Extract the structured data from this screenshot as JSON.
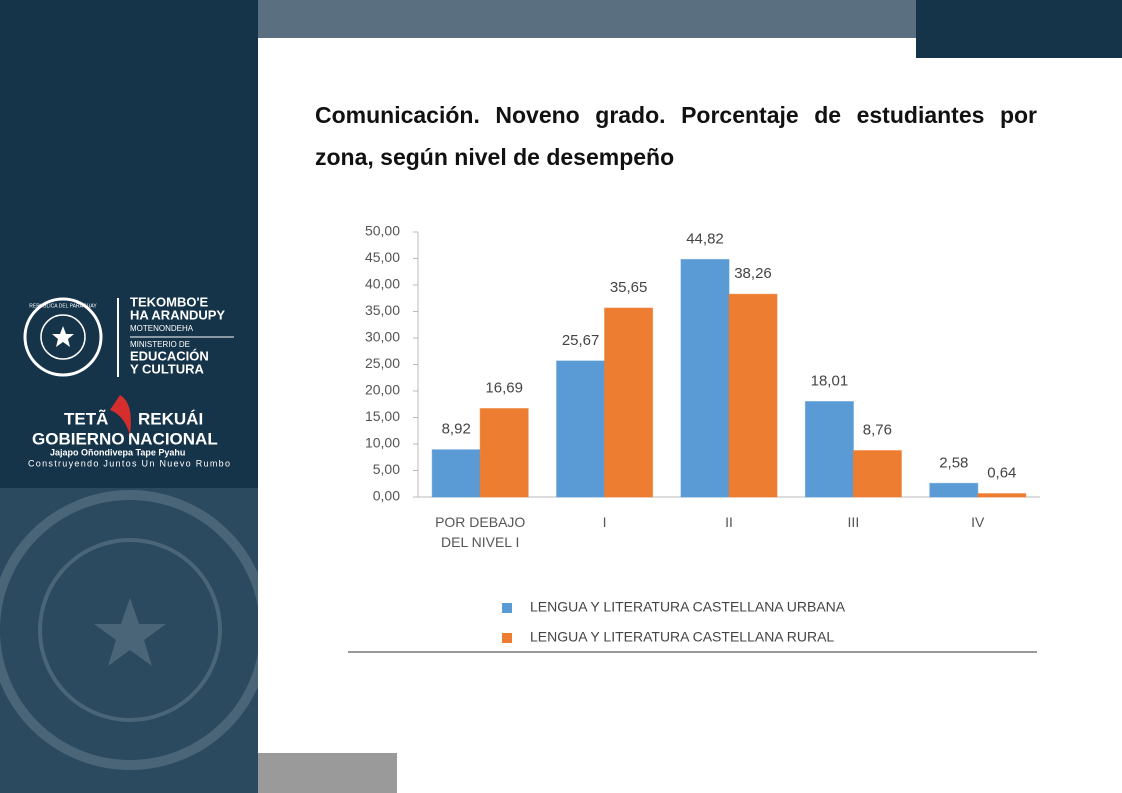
{
  "sidebar": {
    "seal_text": "REPUBLICA DEL PARAGUAY",
    "ministry_1": "TEKOMBO'E",
    "ministry_2": "HA ARANDUPY",
    "ministry_3": "MOTENONDEHA",
    "ministry_4": "MINISTERIO DE",
    "ministry_5": "EDUCACIÓN",
    "ministry_6": "Y CULTURA",
    "gov_1": "TETÃ",
    "gov_2": "REKUÁI",
    "gov_3": "GOBIERNO",
    "gov_4": "NACIONAL",
    "motto_1": "Jajapo Oñondivepa Tape Pyahu",
    "motto_2": "Construyendo Juntos Un Nuevo Rumbo"
  },
  "chart_data": {
    "type": "bar",
    "title": "Comunicación. Noveno grado. Porcentaje de estudiantes por zona,  según nivel de desempeño",
    "categories": [
      "POR DEBAJO DEL NIVEL I",
      "I",
      "II",
      "III",
      "IV"
    ],
    "series": [
      {
        "name": "LENGUA Y LITERATURA CASTELLANA URBANA",
        "color": "#5b9bd5",
        "values": [
          8.92,
          25.67,
          44.82,
          18.01,
          2.58
        ],
        "value_labels": [
          "8,92",
          "25,67",
          "44,82",
          "18,01",
          "2,58"
        ]
      },
      {
        "name": "LENGUA Y LITERATURA CASTELLANA RURAL",
        "color": "#ed7d31",
        "values": [
          16.69,
          35.65,
          38.26,
          8.76,
          0.64
        ],
        "value_labels": [
          "16,69",
          "35,65",
          "38,26",
          "8,76",
          "0,64"
        ]
      }
    ],
    "ylim": [
      0,
      50
    ],
    "yticks": [
      {
        "value": 0,
        "label": "0,00"
      },
      {
        "value": 5,
        "label": "5,00"
      },
      {
        "value": 10,
        "label": "10,00"
      },
      {
        "value": 15,
        "label": "15,00"
      },
      {
        "value": 20,
        "label": "20,00"
      },
      {
        "value": 25,
        "label": "25,00"
      },
      {
        "value": 30,
        "label": "30,00"
      },
      {
        "value": 35,
        "label": "35,00"
      },
      {
        "value": 40,
        "label": "40,00"
      },
      {
        "value": 45,
        "label": "45,00"
      },
      {
        "value": 50,
        "label": "50,00"
      }
    ],
    "grid": false,
    "legend": "bottom"
  }
}
